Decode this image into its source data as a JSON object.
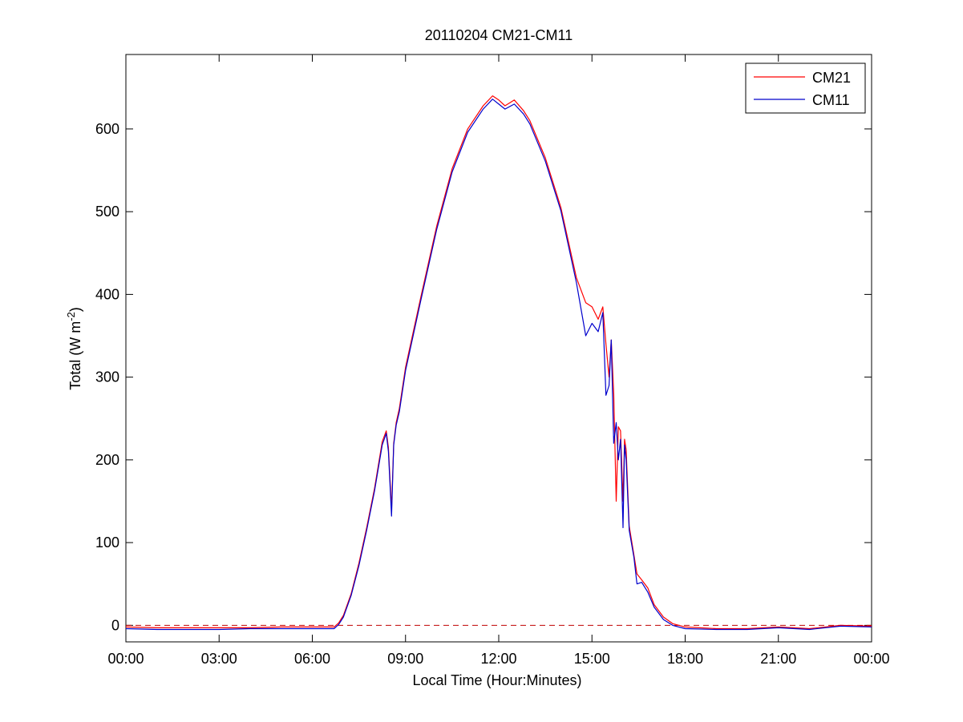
{
  "chart_data": {
    "type": "line",
    "title": "20110204 CM21-CM11",
    "xlabel": "Local Time (Hour:Minutes)",
    "ylabel": "Total (W m",
    "ylabel_sup": "-2",
    "ylabel_close": ")",
    "xlim": [
      0,
      24
    ],
    "ylim": [
      -20,
      690
    ],
    "x_ticks": [
      0,
      3,
      6,
      9,
      12,
      15,
      18,
      21,
      24
    ],
    "x_tick_labels": [
      "00:00",
      "03:00",
      "06:00",
      "09:00",
      "12:00",
      "15:00",
      "18:00",
      "21:00",
      "00:00"
    ],
    "y_ticks": [
      0,
      100,
      200,
      300,
      400,
      500,
      600
    ],
    "y_tick_labels": [
      "0",
      "100",
      "200",
      "300",
      "400",
      "500",
      "600"
    ],
    "grid": false,
    "legend_position": "top-right",
    "reference_line": {
      "y": 0,
      "color": "#c00000",
      "style": "dashed"
    },
    "series": [
      {
        "name": "CM21",
        "color": "#ff0000",
        "x": [
          0,
          1,
          2,
          3,
          4,
          5,
          6,
          6.7,
          6.85,
          7.0,
          7.25,
          7.5,
          7.75,
          8.0,
          8.25,
          8.38,
          8.45,
          8.55,
          8.62,
          8.7,
          8.8,
          9.0,
          9.5,
          10.0,
          10.5,
          11.0,
          11.5,
          11.8,
          12.0,
          12.2,
          12.5,
          12.8,
          13.0,
          13.5,
          14.0,
          14.5,
          14.8,
          15.0,
          15.2,
          15.35,
          15.45,
          15.55,
          15.62,
          15.7,
          15.78,
          15.85,
          15.92,
          16.0,
          16.05,
          16.1,
          16.2,
          16.35,
          16.45,
          16.6,
          16.8,
          17.0,
          17.3,
          17.6,
          18.0,
          19.0,
          20.0,
          21.0,
          22.0,
          23.0,
          24.0
        ],
        "values": [
          -2,
          -3,
          -3,
          -3,
          -3,
          -2,
          -2,
          -2,
          3,
          12,
          38,
          75,
          118,
          165,
          222,
          235,
          215,
          140,
          220,
          245,
          262,
          312,
          398,
          482,
          552,
          600,
          628,
          640,
          635,
          628,
          635,
          622,
          610,
          565,
          505,
          420,
          390,
          385,
          370,
          385,
          340,
          300,
          345,
          280,
          150,
          240,
          235,
          150,
          225,
          212,
          120,
          85,
          62,
          55,
          45,
          25,
          10,
          2,
          -2,
          -4,
          -4,
          -2,
          -4,
          0,
          -1
        ]
      },
      {
        "name": "CM11",
        "color": "#0000cc",
        "x": [
          0,
          1,
          2,
          3,
          4,
          5,
          6,
          6.7,
          6.85,
          7.0,
          7.25,
          7.5,
          7.75,
          8.0,
          8.25,
          8.38,
          8.45,
          8.55,
          8.62,
          8.7,
          8.8,
          9.0,
          9.5,
          10.0,
          10.5,
          11.0,
          11.5,
          11.8,
          12.0,
          12.2,
          12.5,
          12.8,
          13.0,
          13.5,
          14.0,
          14.5,
          14.8,
          15.0,
          15.2,
          15.35,
          15.45,
          15.55,
          15.62,
          15.7,
          15.78,
          15.85,
          15.92,
          16.0,
          16.05,
          16.1,
          16.2,
          16.35,
          16.45,
          16.6,
          16.8,
          17.0,
          17.3,
          17.6,
          18.0,
          19.0,
          20.0,
          21.0,
          22.0,
          23.0,
          24.0
        ],
        "values": [
          -4,
          -5,
          -5,
          -5,
          -4,
          -4,
          -4,
          -4,
          1,
          10,
          36,
          72,
          115,
          162,
          218,
          232,
          210,
          132,
          218,
          242,
          258,
          308,
          394,
          478,
          548,
          596,
          624,
          636,
          630,
          624,
          630,
          618,
          606,
          561,
          501,
          414,
          350,
          365,
          355,
          378,
          278,
          290,
          345,
          220,
          245,
          200,
          225,
          118,
          218,
          200,
          115,
          82,
          50,
          52,
          40,
          22,
          7,
          0,
          -4,
          -5,
          -5,
          -3,
          -5,
          -1,
          -2
        ]
      }
    ]
  }
}
